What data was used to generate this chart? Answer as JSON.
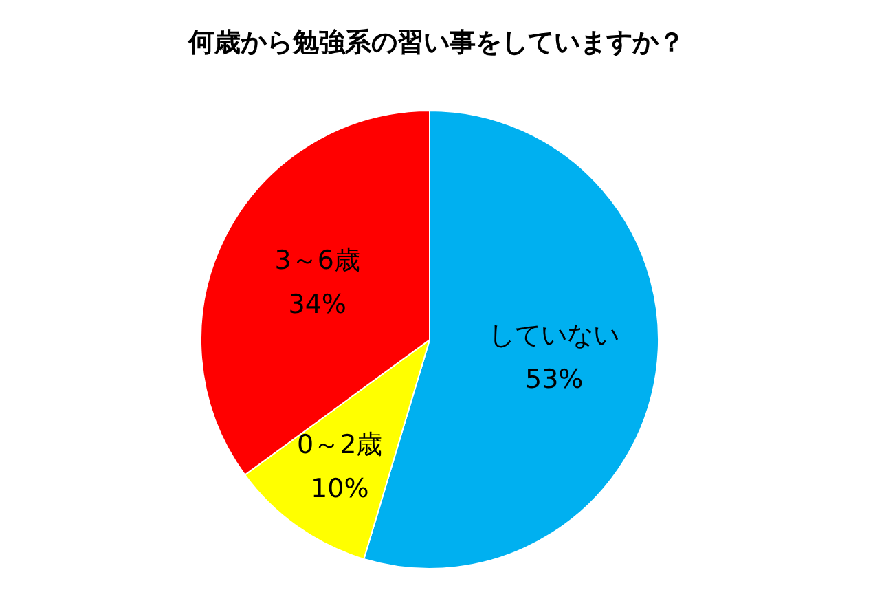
{
  "chart_data": {
    "type": "pie",
    "title": "何歳から勉強系の習い事をしていますか？",
    "categories": [
      "していない",
      "0～2歳",
      "3～6歳"
    ],
    "values": [
      53,
      10,
      34
    ],
    "value_labels": [
      "53%",
      "10%",
      "34%"
    ],
    "colors": [
      "#00b0f0",
      "#ffff00",
      "#ff0000"
    ],
    "legend": false
  }
}
